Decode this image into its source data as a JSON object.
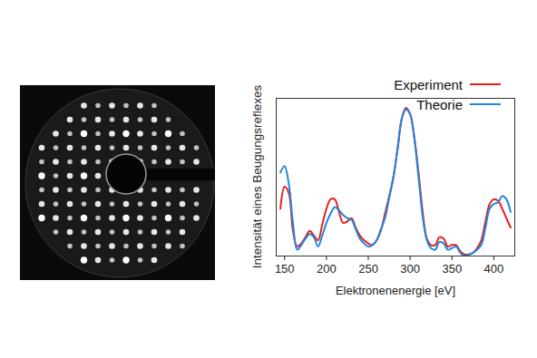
{
  "chart_data": {
    "type": "line",
    "x_label": "Elektronenenergie [eV]",
    "y_label": "Intensität eines Beugungsreflexes",
    "x": [
      145,
      150,
      155,
      160,
      165,
      170,
      175,
      180,
      185,
      190,
      195,
      200,
      205,
      210,
      215,
      220,
      225,
      230,
      235,
      240,
      245,
      250,
      255,
      260,
      265,
      270,
      275,
      280,
      285,
      290,
      295,
      300,
      305,
      310,
      315,
      320,
      325,
      330,
      335,
      340,
      345,
      350,
      355,
      360,
      365,
      370,
      375,
      380,
      385,
      390,
      395,
      400,
      405,
      410,
      415,
      420
    ],
    "series": [
      {
        "name": "Experiment",
        "color": "#e8201c",
        "values": [
          30,
          44,
          40,
          16,
          6,
          8,
          12,
          16,
          13,
          10,
          20,
          30,
          36,
          36,
          28,
          21,
          22,
          24,
          18,
          13,
          10,
          8,
          7,
          10,
          16,
          27,
          38,
          50,
          68,
          87,
          94,
          90,
          75,
          53,
          28,
          11,
          7,
          7,
          12,
          11,
          6,
          7,
          7,
          3,
          1,
          1,
          2,
          5,
          10,
          22,
          33,
          36,
          35,
          30,
          24,
          18
        ]
      },
      {
        "name": "Theorie",
        "color": "#1f86e0",
        "values": [
          53,
          57,
          46,
          21,
          4,
          7,
          11,
          14,
          12,
          6,
          13,
          21,
          27,
          31,
          29,
          26,
          24,
          23,
          17,
          11,
          8,
          6,
          7,
          10,
          17,
          24,
          37,
          50,
          68,
          87,
          93,
          90,
          75,
          50,
          25,
          10,
          5,
          4,
          9,
          8,
          4,
          5,
          6,
          2,
          0,
          1,
          2,
          4,
          7,
          18,
          30,
          33,
          34,
          38,
          36,
          28
        ]
      }
    ],
    "xlim": [
      140,
      425
    ],
    "xticks": [
      150,
      200,
      250,
      300,
      350,
      400
    ],
    "ylim": [
      0,
      100
    ],
    "tick_labels": "x",
    "legend": "top-right",
    "grid": false
  }
}
